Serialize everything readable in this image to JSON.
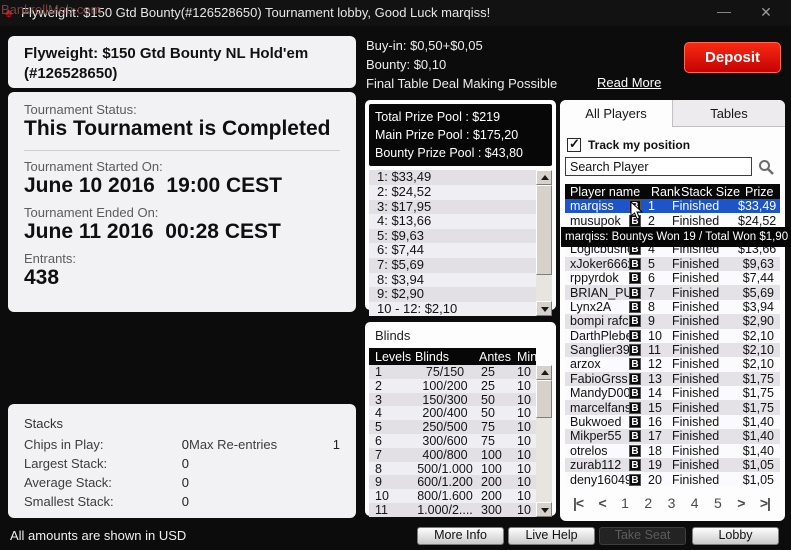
{
  "window": {
    "title": "Flyweight: $150 Gtd Bounty(#126528650) Tournament lobby, Good Luck marqiss!",
    "watermark": "BankrollMob.com",
    "minimize_glyph": "—",
    "close_glyph": "✕"
  },
  "tournament": {
    "name_line1": "Flyweight: $150 Gtd Bounty NL Hold'em",
    "name_line2": "(#126528650)",
    "status_label": "Tournament Status:",
    "status_value": "This Tournament is Completed",
    "started_label": "Tournament Started On:",
    "started_value": "June 10 2016  19:00 CEST",
    "ended_label": "Tournament Ended On:",
    "ended_value": "June 11 2016  00:28 CEST",
    "entrants_label": "Entrants:",
    "entrants_value": "438"
  },
  "stacks": {
    "title": "Stacks",
    "rows": [
      {
        "label": "Chips in Play:",
        "value": "0",
        "label2": "Max Re-entries",
        "value2": "1"
      },
      {
        "label": "Largest Stack:",
        "value": "0",
        "label2": "",
        "value2": ""
      },
      {
        "label": "Average Stack:",
        "value": "0",
        "label2": "",
        "value2": ""
      },
      {
        "label": "Smallest Stack:",
        "value": "0",
        "label2": "",
        "value2": ""
      }
    ]
  },
  "buyin": {
    "line1": "Buy-in: $0,50+$0,05",
    "line2": "Bounty: $0,10",
    "line3": "Final Table Deal Making Possible",
    "read_more": "Read More",
    "deposit_label": "Deposit"
  },
  "prize": {
    "header_lines": [
      "Total Prize Pool : $219",
      "Main Prize Pool : $175,20",
      "Bounty Prize Pool : $43,80"
    ],
    "payouts": [
      "1: $33,49",
      "2: $24,52",
      "3: $17,95",
      "4: $13,66",
      "5: $9,63",
      "6: $7,44",
      "7: $5,69",
      "8: $3,94",
      "9: $2,90",
      "10 - 12: $2,10"
    ]
  },
  "blinds": {
    "title": "Blinds",
    "headers": [
      "Levels",
      "Blinds",
      "Antes",
      "Min."
    ],
    "rows": [
      [
        "1",
        "75/150",
        "25",
        "10"
      ],
      [
        "2",
        "100/200",
        "25",
        "10"
      ],
      [
        "3",
        "150/300",
        "50",
        "10"
      ],
      [
        "4",
        "200/400",
        "50",
        "10"
      ],
      [
        "5",
        "250/500",
        "75",
        "10"
      ],
      [
        "6",
        "300/600",
        "75",
        "10"
      ],
      [
        "7",
        "400/800",
        "100",
        "10"
      ],
      [
        "8",
        "500/1.000",
        "100",
        "10"
      ],
      [
        "9",
        "600/1.200",
        "200",
        "10"
      ],
      [
        "10",
        "800/1.600",
        "200",
        "10"
      ],
      [
        "11",
        "1.000/2....",
        "300",
        "10"
      ]
    ]
  },
  "players": {
    "tabs": [
      "All Players",
      "Tables"
    ],
    "track_label": "Track my position",
    "search_value": "Search Player",
    "headers": [
      "Player name",
      "Rank",
      "Stack Size",
      "Prize"
    ],
    "badge_label": "B",
    "rows": [
      {
        "name": "marqiss",
        "rank": "1",
        "status": "Finished",
        "prize": "$33,49",
        "selected": true,
        "badge": true
      },
      {
        "name": "musupok",
        "rank": "2",
        "status": "Finished",
        "prize": "$24,52",
        "selected": false,
        "badge": true
      },
      {
        "name": "",
        "rank": "",
        "status": "",
        "prize": "",
        "selected": false,
        "badge": false
      },
      {
        "name": "Logicbusher",
        "rank": "4",
        "status": "Finished",
        "prize": "$13,66",
        "selected": false,
        "badge": true
      },
      {
        "name": "xJoker666x",
        "rank": "5",
        "status": "Finished",
        "prize": "$9,63",
        "selected": false,
        "badge": true
      },
      {
        "name": "rppyrdok",
        "rank": "6",
        "status": "Finished",
        "prize": "$7,44",
        "selected": false,
        "badge": true
      },
      {
        "name": "BRIAN_PUNTS",
        "rank": "7",
        "status": "Finished",
        "prize": "$5,69",
        "selected": false,
        "badge": true
      },
      {
        "name": "Lynx2A",
        "rank": "8",
        "status": "Finished",
        "prize": "$3,94",
        "selected": false,
        "badge": true
      },
      {
        "name": "bompi rafc",
        "rank": "9",
        "status": "Finished",
        "prize": "$2,90",
        "selected": false,
        "badge": true
      },
      {
        "name": "DarthPlebeu",
        "rank": "10",
        "status": "Finished",
        "prize": "$2,10",
        "selected": false,
        "badge": true
      },
      {
        "name": "Sanglier399",
        "rank": "11",
        "status": "Finished",
        "prize": "$2,10",
        "selected": false,
        "badge": true
      },
      {
        "name": "arzox",
        "rank": "12",
        "status": "Finished",
        "prize": "$2,10",
        "selected": false,
        "badge": true
      },
      {
        "name": "FabioGrss",
        "rank": "13",
        "status": "Finished",
        "prize": "$1,75",
        "selected": false,
        "badge": true
      },
      {
        "name": "MandyD007",
        "rank": "14",
        "status": "Finished",
        "prize": "$1,75",
        "selected": false,
        "badge": true
      },
      {
        "name": "marcelfans",
        "rank": "15",
        "status": "Finished",
        "prize": "$1,75",
        "selected": false,
        "badge": true
      },
      {
        "name": "Bukwoed",
        "rank": "16",
        "status": "Finished",
        "prize": "$1,40",
        "selected": false,
        "badge": true
      },
      {
        "name": "Mikper55",
        "rank": "17",
        "status": "Finished",
        "prize": "$1,40",
        "selected": false,
        "badge": true
      },
      {
        "name": "otrelos",
        "rank": "18",
        "status": "Finished",
        "prize": "$1,40",
        "selected": false,
        "badge": true
      },
      {
        "name": "zurab112",
        "rank": "19",
        "status": "Finished",
        "prize": "$1,05",
        "selected": false,
        "badge": true
      },
      {
        "name": "deny160495",
        "rank": "20",
        "status": "Finished",
        "prize": "$1,05",
        "selected": false,
        "badge": true
      }
    ],
    "pagination": [
      "|<",
      "<",
      "1",
      "2",
      "3",
      "4",
      "5",
      ">",
      ">|"
    ]
  },
  "tooltip_text": "marqiss: Bountys Won 19 / Total Won $1,90",
  "footer": {
    "buttons": [
      {
        "label": "More Info",
        "disabled": false
      },
      {
        "label": "Live Help",
        "disabled": false
      },
      {
        "label": "Take Seat",
        "disabled": true
      },
      {
        "label": "Lobby",
        "disabled": false
      }
    ],
    "usd_note": "All amounts are shown in USD"
  }
}
